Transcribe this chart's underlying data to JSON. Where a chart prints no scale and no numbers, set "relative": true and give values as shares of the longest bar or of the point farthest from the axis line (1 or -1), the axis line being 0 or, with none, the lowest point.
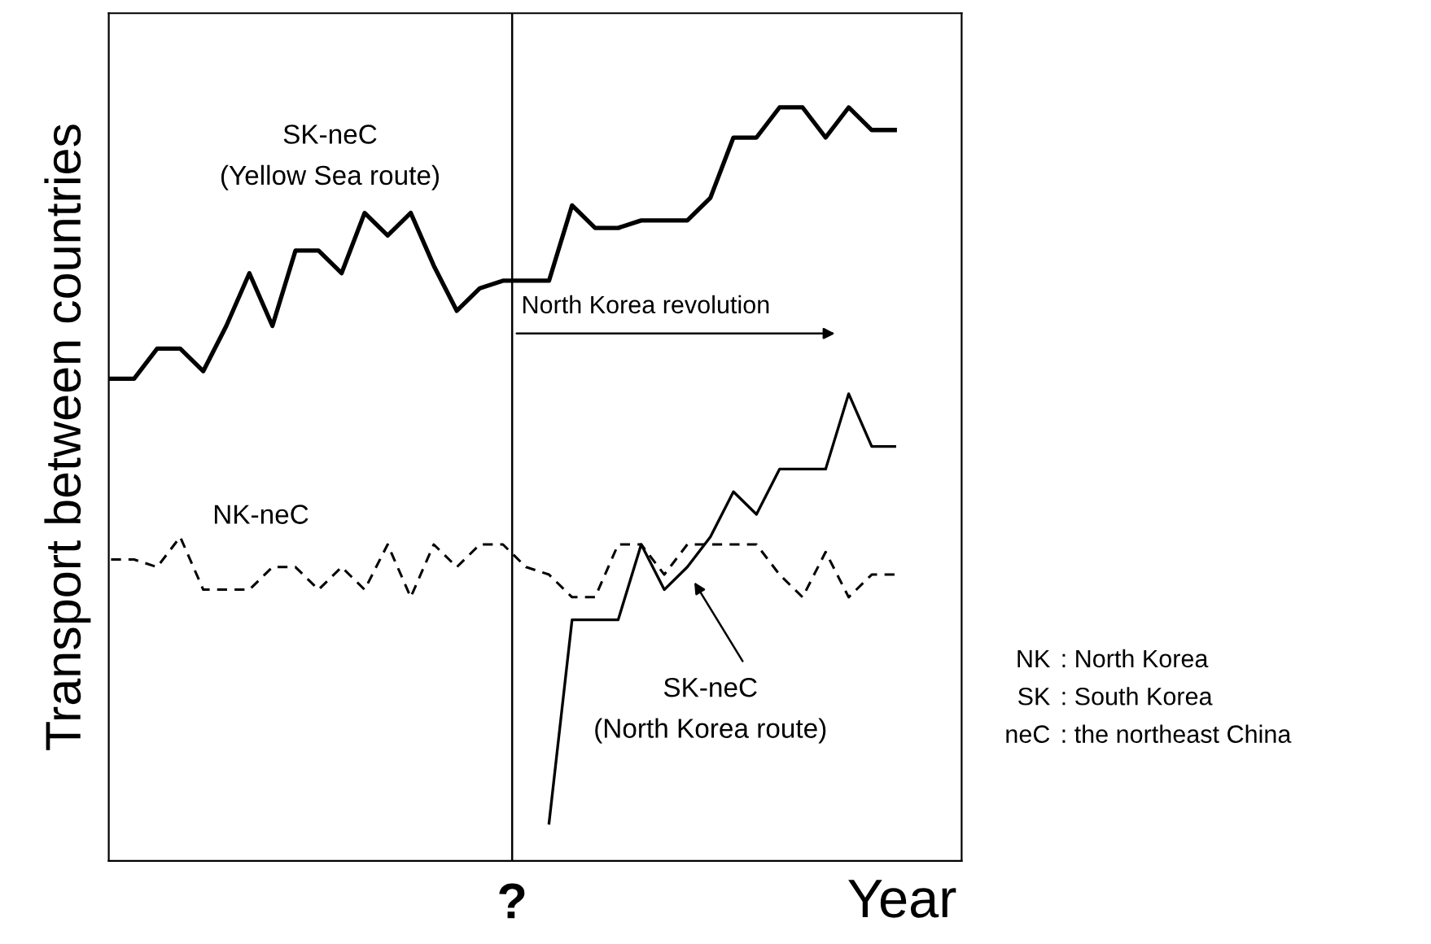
{
  "chart_data": {
    "type": "line",
    "relative": true,
    "ylabel": "Transport between countries",
    "xlabel": "Year",
    "categories": [
      null,
      null,
      null,
      null,
      null,
      null,
      null,
      null,
      null,
      null,
      null,
      null,
      null,
      null,
      null,
      null,
      null,
      null,
      null,
      null,
      null,
      null,
      null,
      null,
      null,
      null,
      null,
      null,
      null,
      null,
      null,
      null,
      null,
      null,
      null
    ],
    "series": [
      {
        "name": "SK-neC\n(Yellow Sea route)",
        "color": "#000000",
        "line_style": "solid",
        "values": [
          0.64,
          0.64,
          0.68,
          0.68,
          0.65,
          0.71,
          0.78,
          0.71,
          0.81,
          0.81,
          0.78,
          0.86,
          0.83,
          0.86,
          0.79,
          0.73,
          0.76,
          0.77,
          0.77,
          0.77,
          0.87,
          0.84,
          0.84,
          0.85,
          0.85,
          0.85,
          0.88,
          0.96,
          0.96,
          1.0,
          1.0,
          0.96,
          1.0,
          0.97,
          0.97
        ]
      },
      {
        "name": "NK-neC",
        "color": "#000000",
        "line_style": "dashed",
        "values": [
          0.4,
          0.4,
          0.39,
          0.43,
          0.36,
          0.36,
          0.36,
          0.39,
          0.39,
          0.36,
          0.39,
          0.36,
          0.42,
          0.35,
          0.42,
          0.39,
          0.42,
          0.42,
          0.39,
          0.38,
          0.35,
          0.35,
          0.42,
          0.42,
          0.38,
          0.42,
          0.42,
          0.42,
          0.42,
          0.38,
          0.35,
          0.41,
          0.35,
          0.38,
          0.38
        ]
      },
      {
        "name": "SK-neC\n(North Korea route)",
        "color": "#000000",
        "line_style": "solid",
        "values": [
          null,
          null,
          null,
          null,
          null,
          null,
          null,
          null,
          null,
          null,
          null,
          null,
          null,
          null,
          null,
          null,
          null,
          null,
          null,
          0.05,
          0.32,
          0.32,
          0.32,
          0.42,
          0.36,
          0.39,
          0.43,
          0.49,
          0.46,
          0.52,
          0.52,
          0.52,
          0.62,
          0.55,
          0.55
        ]
      }
    ],
    "annotations": [
      "?",
      "North Korea revolution",
      "NK  : North Korea",
      "SK  : South Korea",
      "neC  : the northeast China"
    ],
    "legend": false,
    "marker": "none"
  }
}
